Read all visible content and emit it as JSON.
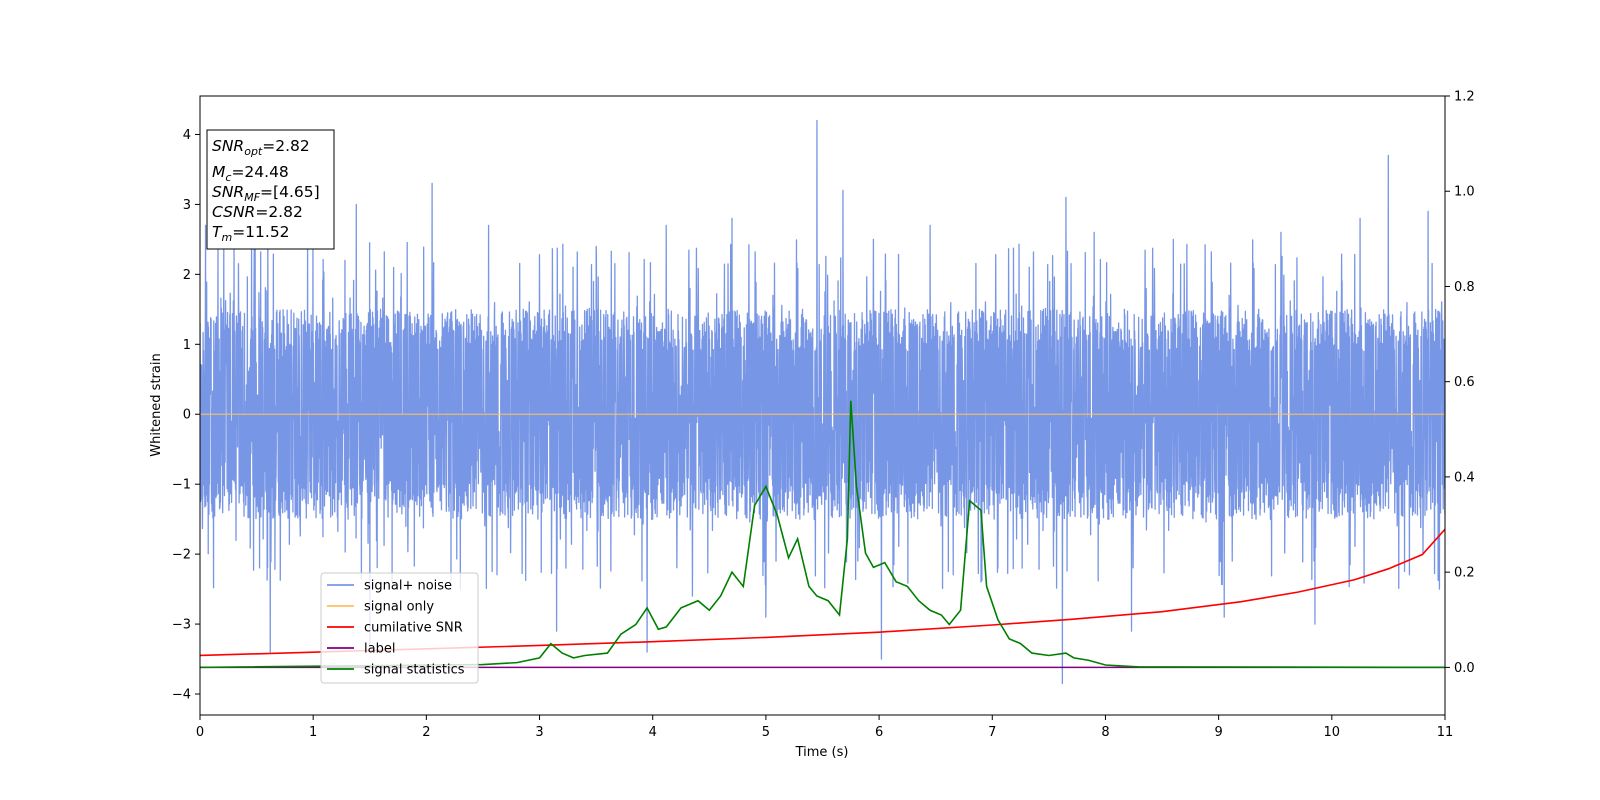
{
  "chart_data": {
    "type": "line",
    "xlabel": "Time (s)",
    "ylabel": "Whitened strain",
    "xlim": [
      0,
      11
    ],
    "ylim": [
      -4.3,
      4.55
    ],
    "y2lim": [
      -0.1,
      1.2
    ],
    "x_ticks": [
      0,
      1,
      2,
      3,
      4,
      5,
      6,
      7,
      8,
      9,
      10,
      11
    ],
    "y_ticks": [
      -4,
      -3,
      -2,
      -1,
      0,
      1,
      2,
      3,
      4
    ],
    "y2_ticks": [
      "0.0",
      "0.2",
      "0.4",
      "0.6",
      "0.8",
      "1.0",
      "1.2"
    ],
    "grid": false,
    "legend_position": "lower-left",
    "stats_box": {
      "position": "top-left",
      "lines": [
        {
          "symbol": "SNR",
          "sub": "opt",
          "value": "=2.82"
        },
        {
          "symbol": "M",
          "sub": "c",
          "value": "=24.48"
        },
        {
          "symbol": "SNR",
          "sub": "MF",
          "value": "=[4.65]"
        },
        {
          "symbol": "CSNR",
          "sub": "",
          "value": "=2.82"
        },
        {
          "symbol": "T",
          "sub": "m",
          "value": "=11.52"
        }
      ]
    },
    "series": [
      {
        "name": "signal+ noise",
        "color": "#7896e6",
        "axis": "left",
        "kind": "noise",
        "band_upper": 1.5,
        "band_lower": -1.5,
        "spikes": [
          [
            0.05,
            2.7
          ],
          [
            0.3,
            2.4
          ],
          [
            0.62,
            -3.4
          ],
          [
            0.95,
            2.45
          ],
          [
            1.38,
            3.0
          ],
          [
            1.5,
            -3.3
          ],
          [
            2.05,
            3.3
          ],
          [
            2.3,
            -2.5
          ],
          [
            2.55,
            2.7
          ],
          [
            3.15,
            -3.1
          ],
          [
            3.5,
            2.4
          ],
          [
            3.95,
            -3.4
          ],
          [
            4.12,
            2.7
          ],
          [
            4.35,
            -2.6
          ],
          [
            4.7,
            2.8
          ],
          [
            5.0,
            -2.9
          ],
          [
            5.45,
            4.2
          ],
          [
            5.68,
            3.2
          ],
          [
            5.95,
            2.5
          ],
          [
            6.02,
            -3.5
          ],
          [
            6.45,
            2.7
          ],
          [
            6.9,
            -2.4
          ],
          [
            7.05,
            -2.2
          ],
          [
            7.62,
            -3.85
          ],
          [
            7.65,
            3.1
          ],
          [
            7.9,
            2.6
          ],
          [
            8.23,
            -3.1
          ],
          [
            8.6,
            2.5
          ],
          [
            9.05,
            -2.9
          ],
          [
            9.55,
            2.6
          ],
          [
            9.85,
            -3.0
          ],
          [
            10.25,
            2.8
          ],
          [
            10.5,
            3.7
          ],
          [
            10.85,
            2.9
          ],
          [
            10.95,
            -2.5
          ]
        ]
      },
      {
        "name": "signal only",
        "color": "#ffbf60",
        "axis": "left",
        "x": [
          0,
          11
        ],
        "y": [
          0,
          0
        ]
      },
      {
        "name": "cumilative SNR",
        "color": "#ff0000",
        "axis": "right",
        "x": [
          0,
          1,
          2,
          3,
          4,
          5,
          6,
          7,
          7.7,
          8.5,
          9.2,
          9.7,
          10.2,
          10.5,
          10.8,
          11
        ],
        "y": [
          0.025,
          0.032,
          0.039,
          0.046,
          0.054,
          0.063,
          0.074,
          0.089,
          0.101,
          0.117,
          0.138,
          0.158,
          0.184,
          0.207,
          0.237,
          0.29
        ]
      },
      {
        "name": "label",
        "color": "#800080",
        "axis": "right",
        "x": [
          0,
          11
        ],
        "y": [
          0,
          0
        ]
      },
      {
        "name": "signal statistics",
        "color": "#008000",
        "axis": "right",
        "x": [
          0,
          2.5,
          2.8,
          3.0,
          3.1,
          3.2,
          3.3,
          3.4,
          3.6,
          3.72,
          3.85,
          3.95,
          4.05,
          4.12,
          4.25,
          4.4,
          4.5,
          4.6,
          4.7,
          4.8,
          4.9,
          5.0,
          5.1,
          5.2,
          5.28,
          5.38,
          5.45,
          5.55,
          5.65,
          5.72,
          5.75,
          5.8,
          5.88,
          5.95,
          6.05,
          6.15,
          6.25,
          6.35,
          6.45,
          6.55,
          6.62,
          6.72,
          6.8,
          6.9,
          6.95,
          7.05,
          7.15,
          7.25,
          7.35,
          7.5,
          7.65,
          7.72,
          7.85,
          8.0,
          8.3,
          11
        ],
        "y": [
          0.0,
          0.006,
          0.01,
          0.02,
          0.05,
          0.03,
          0.02,
          0.025,
          0.03,
          0.07,
          0.09,
          0.125,
          0.08,
          0.085,
          0.125,
          0.14,
          0.12,
          0.15,
          0.2,
          0.17,
          0.34,
          0.38,
          0.32,
          0.23,
          0.27,
          0.17,
          0.15,
          0.14,
          0.11,
          0.27,
          0.56,
          0.38,
          0.24,
          0.21,
          0.22,
          0.18,
          0.17,
          0.14,
          0.12,
          0.11,
          0.09,
          0.12,
          0.35,
          0.33,
          0.17,
          0.1,
          0.06,
          0.05,
          0.03,
          0.025,
          0.03,
          0.02,
          0.015,
          0.005,
          0.001,
          0.0
        ]
      }
    ]
  }
}
